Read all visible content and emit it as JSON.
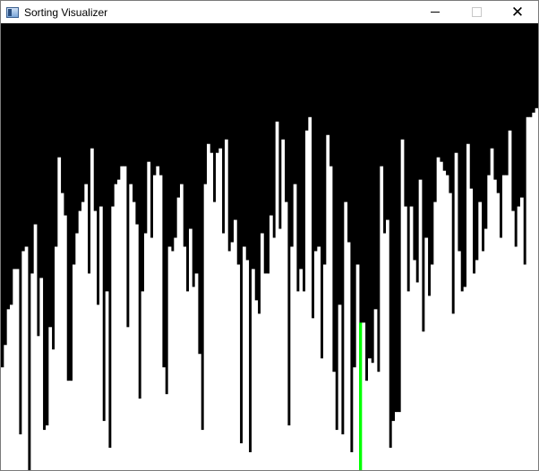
{
  "window": {
    "title": "Sorting Visualizer",
    "icon": "app-window-icon",
    "controls": {
      "close_glyph": "✕"
    }
  },
  "colors": {
    "background": "#000000",
    "bar": "#ffffff",
    "highlight": "#00ff00",
    "highlight_top": "#39c839"
  },
  "chart_data": {
    "type": "bar",
    "ylim": [
      0,
      100
    ],
    "highlight_index": 120,
    "values": [
      23,
      28,
      36,
      37,
      45,
      45,
      8,
      49,
      50,
      0,
      44,
      55,
      30,
      43,
      9,
      10,
      32,
      27,
      50,
      70,
      62,
      57,
      20,
      20,
      46,
      53,
      58,
      60,
      64,
      44,
      72,
      58,
      37,
      59,
      11,
      40,
      5,
      59,
      64,
      65,
      68,
      68,
      32,
      64,
      60,
      55,
      16,
      40,
      53,
      69,
      52,
      66,
      68,
      66,
      23,
      17,
      50,
      49,
      52,
      61,
      64,
      50,
      40,
      54,
      41,
      44,
      26,
      9,
      64,
      73,
      71,
      60,
      71,
      72,
      53,
      74,
      49,
      51,
      56,
      46,
      6,
      50,
      47,
      4,
      45,
      38,
      35,
      53,
      44,
      44,
      57,
      52,
      78,
      54,
      74,
      60,
      10,
      50,
      64,
      40,
      45,
      40,
      76,
      79,
      34,
      49,
      50,
      25,
      46,
      75,
      68,
      22,
      9,
      37,
      8,
      60,
      51,
      4,
      23,
      46,
      33,
      33,
      20,
      25,
      24,
      36,
      22,
      68,
      53,
      56,
      5,
      11,
      13,
      13,
      74,
      59,
      40,
      59,
      47,
      42,
      65,
      31,
      52,
      39,
      46,
      60,
      70,
      69,
      67,
      66,
      62,
      35,
      71,
      49,
      40,
      41,
      73,
      63,
      44,
      47,
      60,
      49,
      54,
      66,
      72,
      65,
      62,
      52,
      66,
      66,
      76,
      58,
      50,
      59,
      61,
      46,
      79,
      79,
      80,
      81
    ]
  }
}
